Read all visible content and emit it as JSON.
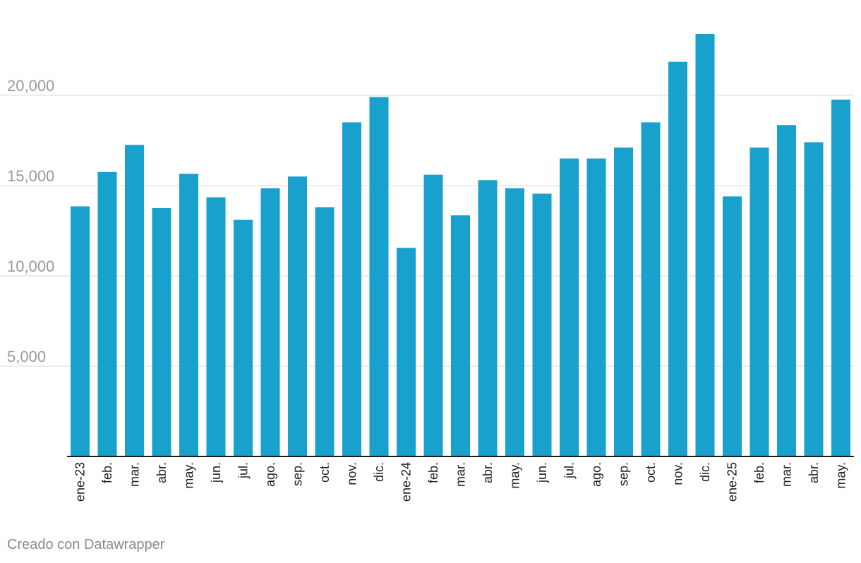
{
  "colors": {
    "bar": "#18a1cd",
    "grid": "#e5e5e5",
    "axis": "#1a1a1a",
    "tick_text": "#9a9a9a",
    "label_text": "#222222"
  },
  "chart_data": {
    "type": "bar",
    "title": "",
    "xlabel": "",
    "ylabel": "",
    "ylim": [
      0,
      24000
    ],
    "yticks": [
      5000,
      10000,
      15000,
      20000
    ],
    "ytick_labels": [
      "5,000",
      "10,000",
      "15,000",
      "20,000"
    ],
    "grid": true,
    "categories": [
      "ene-23",
      "feb.",
      "mar.",
      "abr.",
      "may.",
      "jun.",
      "jul.",
      "ago.",
      "sep.",
      "oct.",
      "nov.",
      "dic.",
      "ene-24",
      "feb.",
      "mar.",
      "abr.",
      "may.",
      "jun.",
      "jul.",
      "ago.",
      "sep.",
      "oct.",
      "nov.",
      "dic.",
      "ene-25",
      "feb.",
      "mar.",
      "abr.",
      "may."
    ],
    "values": [
      13850,
      15750,
      17250,
      13750,
      15650,
      14350,
      13100,
      14850,
      15500,
      13800,
      18500,
      19900,
      11550,
      15600,
      13350,
      15300,
      14850,
      14550,
      16500,
      16500,
      17100,
      18500,
      21850,
      23400,
      14400,
      17100,
      18350,
      17400,
      19750
    ]
  },
  "footer": {
    "credit": "Creado con Datawrapper"
  }
}
